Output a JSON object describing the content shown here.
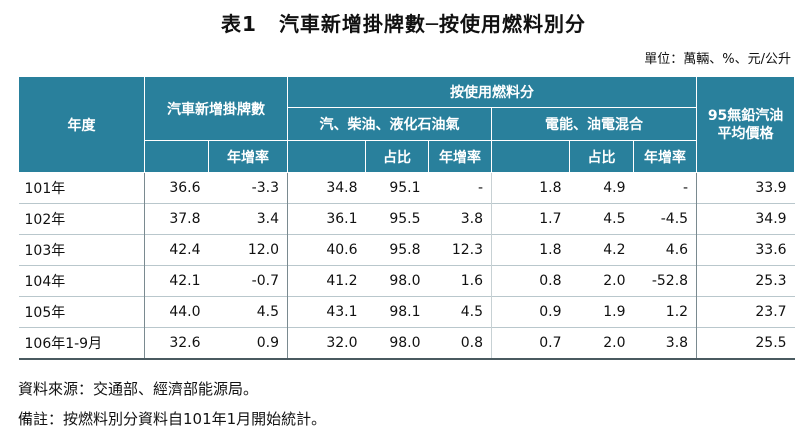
{
  "title": {
    "number": "表1",
    "text": "汽車新增掛牌數─按使用燃料別分"
  },
  "unit": "單位：萬輛、%、元/公升",
  "header": {
    "year": "年度",
    "new_plates": "汽車新增掛牌數",
    "growth": "年增率",
    "by_fuel": "按使用燃料分",
    "gasoline": "汽、柴油、液化石油氣",
    "electric": "電能、油電混合",
    "share": "占比",
    "price": "95無鉛汽油平均價格"
  },
  "rows": [
    {
      "year": "101年",
      "total": "36.6",
      "total_growth": "-3.3",
      "gas": "34.8",
      "gas_share": "95.1",
      "gas_growth": "-",
      "ev": "1.8",
      "ev_share": "4.9",
      "ev_growth": "-",
      "price": "33.9"
    },
    {
      "year": "102年",
      "total": "37.8",
      "total_growth": "3.4",
      "gas": "36.1",
      "gas_share": "95.5",
      "gas_growth": "3.8",
      "ev": "1.7",
      "ev_share": "4.5",
      "ev_growth": "-4.5",
      "price": "34.9"
    },
    {
      "year": "103年",
      "total": "42.4",
      "total_growth": "12.0",
      "gas": "40.6",
      "gas_share": "95.8",
      "gas_growth": "12.3",
      "ev": "1.8",
      "ev_share": "4.2",
      "ev_growth": "4.6",
      "price": "33.6"
    },
    {
      "year": "104年",
      "total": "42.1",
      "total_growth": "-0.7",
      "gas": "41.2",
      "gas_share": "98.0",
      "gas_growth": "1.6",
      "ev": "0.8",
      "ev_share": "2.0",
      "ev_growth": "-52.8",
      "price": "25.3"
    },
    {
      "year": "105年",
      "total": "44.0",
      "total_growth": "4.5",
      "gas": "43.1",
      "gas_share": "98.1",
      "gas_growth": "4.5",
      "ev": "0.9",
      "ev_share": "1.9",
      "ev_growth": "1.2",
      "price": "23.7"
    },
    {
      "year": "106年1-9月",
      "total": "32.6",
      "total_growth": "0.9",
      "gas": "32.0",
      "gas_share": "98.0",
      "gas_growth": "0.8",
      "ev": "0.7",
      "ev_share": "2.0",
      "ev_growth": "3.8",
      "price": "25.5"
    }
  ],
  "notes": {
    "source": "資料來源：交通部、經濟部能源局。",
    "remark": "備註：按燃料別分資料自101年1月開始統計。"
  }
}
